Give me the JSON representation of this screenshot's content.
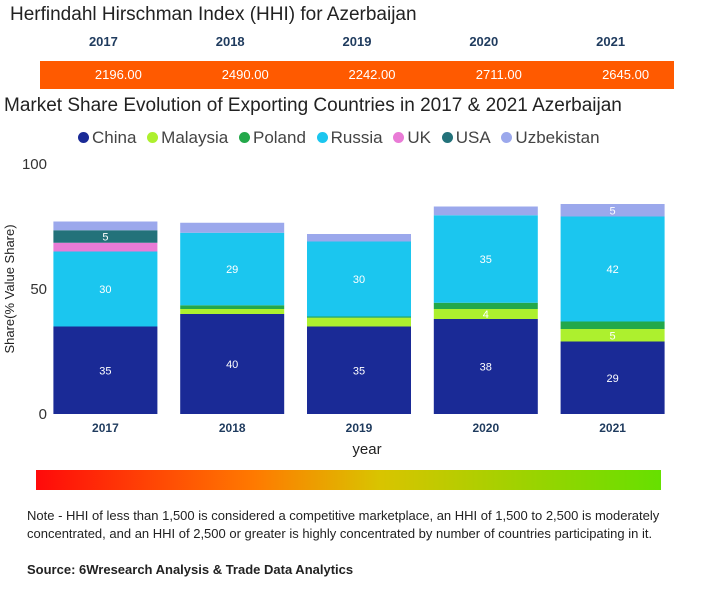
{
  "hhi": {
    "title": "Herfindahl Hirschman Index (HHI) for Azerbaijan",
    "years": [
      "2017",
      "2018",
      "2019",
      "2020",
      "2021"
    ],
    "values": [
      "2196.00",
      "2490.00",
      "2242.00",
      "2711.00",
      "2645.00"
    ],
    "bar_color": "#ff5a00"
  },
  "chart_data": {
    "type": "bar",
    "stacked": true,
    "title": "Market Share Evolution of Exporting Countries in 2017 & 2021 Azerbaijan",
    "xlabel": "year",
    "ylabel": "Share(% Value Share)",
    "ylim": [
      0,
      100
    ],
    "yticks": [
      0,
      50,
      100
    ],
    "categories": [
      "2017",
      "2018",
      "2019",
      "2020",
      "2021"
    ],
    "series": [
      {
        "name": "China",
        "color": "#1a2a96",
        "values": [
          35,
          40,
          35,
          38,
          29
        ],
        "labels": [
          "35",
          "40",
          "35",
          "38",
          "29"
        ]
      },
      {
        "name": "Malaysia",
        "color": "#adf02e",
        "values": [
          0,
          2,
          3.5,
          4,
          5
        ],
        "labels": [
          "",
          "",
          "",
          "4",
          "5"
        ]
      },
      {
        "name": "Poland",
        "color": "#23a84a",
        "values": [
          0,
          1.5,
          0.5,
          2.5,
          3
        ],
        "labels": [
          "",
          "",
          "",
          "",
          ""
        ]
      },
      {
        "name": "Russia",
        "color": "#1bc6ef",
        "values": [
          30,
          29,
          30,
          35,
          42
        ],
        "labels": [
          "30",
          "29",
          "30",
          "35",
          "42"
        ]
      },
      {
        "name": "UK",
        "color": "#e97bd6",
        "values": [
          3.5,
          0,
          0,
          0,
          0
        ],
        "labels": [
          "",
          "",
          "",
          "",
          ""
        ]
      },
      {
        "name": "USA",
        "color": "#23727a",
        "values": [
          5,
          0,
          0,
          0,
          0
        ],
        "labels": [
          "5",
          "",
          "",
          "",
          ""
        ]
      },
      {
        "name": "Uzbekistan",
        "color": "#9ba8ec",
        "values": [
          3.5,
          4,
          3,
          3.5,
          5
        ],
        "labels": [
          "",
          "",
          "",
          "",
          "5"
        ]
      }
    ]
  },
  "footer": {
    "note": "Note - HHI of less than 1,500 is considered a competitive marketplace, an HHI of 1,500 to 2,500 is moderately concentrated, and an HHI of 2,500 or greater is highly concentrated by number of countries participating in it.",
    "source": "Source: 6Wresearch Analysis & Trade Data Analytics"
  }
}
